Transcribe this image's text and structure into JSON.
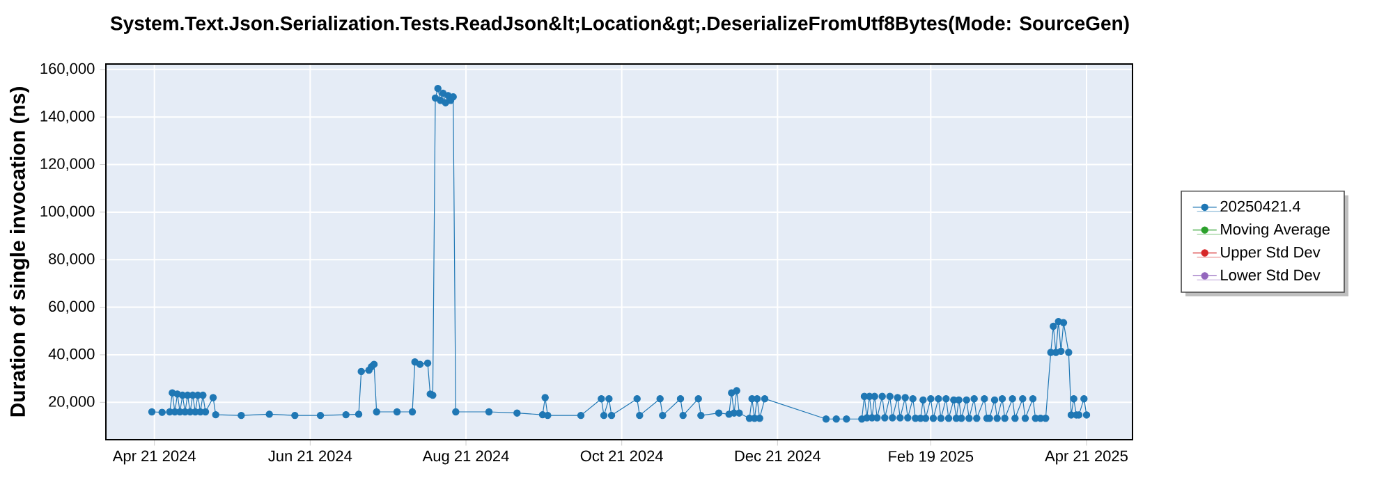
{
  "chart_data": {
    "type": "line",
    "title": "System.Text.Json.Serialization.Tests.ReadJson&lt;Location&gt;.DeserializeFromUtf8Bytes(Mode: SourceGen)",
    "ylabel": "Duration of single invocation (ns)",
    "xlim": [
      "2024-04-02",
      "2025-05-09"
    ],
    "ylim": [
      4300,
      162300
    ],
    "xticks": [
      {
        "value": "2024-04-21",
        "label": "Apr 21 2024"
      },
      {
        "value": "2024-06-21",
        "label": "Jun 21 2024"
      },
      {
        "value": "2024-08-21",
        "label": "Aug 21 2024"
      },
      {
        "value": "2024-10-21",
        "label": "Oct 21 2024"
      },
      {
        "value": "2024-12-21",
        "label": "Dec 21 2024"
      },
      {
        "value": "2025-02-19",
        "label": "Feb 19 2025"
      },
      {
        "value": "2025-04-21",
        "label": "Apr 21 2025"
      }
    ],
    "yticks": [
      {
        "value": 20000,
        "label": "20,000"
      },
      {
        "value": 40000,
        "label": "40,000"
      },
      {
        "value": 60000,
        "label": "60,000"
      },
      {
        "value": 80000,
        "label": "80,000"
      },
      {
        "value": 100000,
        "label": "100,000"
      },
      {
        "value": 120000,
        "label": "120,000"
      },
      {
        "value": 140000,
        "label": "140,000"
      },
      {
        "value": 160000,
        "label": "160,000"
      }
    ],
    "grid": true,
    "legend": "right",
    "marker": "circle",
    "series": [
      {
        "name": "20250421.4",
        "color": "#1f77b4",
        "x": [
          "2024-04-20",
          "2024-04-24",
          "2024-04-27",
          "2024-04-28",
          "2024-04-29",
          "2024-04-30",
          "2024-05-01",
          "2024-05-02",
          "2024-05-03",
          "2024-05-04",
          "2024-05-05",
          "2024-05-06",
          "2024-05-07",
          "2024-05-08",
          "2024-05-09",
          "2024-05-10",
          "2024-05-11",
          "2024-05-14",
          "2024-05-15",
          "2024-05-25",
          "2024-06-05",
          "2024-06-15",
          "2024-06-25",
          "2024-07-05",
          "2024-07-10",
          "2024-07-11",
          "2024-07-14",
          "2024-07-15",
          "2024-07-16",
          "2024-07-17",
          "2024-07-25",
          "2024-07-31",
          "2024-08-01",
          "2024-08-03",
          "2024-08-06",
          "2024-08-07",
          "2024-08-08",
          "2024-08-09",
          "2024-08-10",
          "2024-08-11",
          "2024-08-12",
          "2024-08-13",
          "2024-08-14",
          "2024-08-15",
          "2024-08-16",
          "2024-08-17",
          "2024-08-30",
          "2024-09-10",
          "2024-09-20",
          "2024-09-21",
          "2024-09-22",
          "2024-10-05",
          "2024-10-13",
          "2024-10-14",
          "2024-10-16",
          "2024-10-17",
          "2024-10-27",
          "2024-10-28",
          "2024-11-05",
          "2024-11-06",
          "2024-11-13",
          "2024-11-14",
          "2024-11-20",
          "2024-11-21",
          "2024-11-28",
          "2024-12-02",
          "2024-12-03",
          "2024-12-04",
          "2024-12-05",
          "2024-12-06",
          "2024-12-10",
          "2024-12-11",
          "2024-12-12",
          "2024-12-13",
          "2024-12-14",
          "2024-12-16",
          "2025-01-09",
          "2025-01-13",
          "2025-01-17",
          "2025-01-23",
          "2025-01-24",
          "2025-01-25",
          "2025-01-26",
          "2025-01-27",
          "2025-01-28",
          "2025-01-29",
          "2025-01-31",
          "2025-02-01",
          "2025-02-03",
          "2025-02-04",
          "2025-02-06",
          "2025-02-07",
          "2025-02-09",
          "2025-02-10",
          "2025-02-12",
          "2025-02-13",
          "2025-02-15",
          "2025-02-16",
          "2025-02-17",
          "2025-02-19",
          "2025-02-20",
          "2025-02-22",
          "2025-02-23",
          "2025-02-25",
          "2025-02-26",
          "2025-02-28",
          "2025-03-01",
          "2025-03-02",
          "2025-03-03",
          "2025-03-05",
          "2025-03-06",
          "2025-03-08",
          "2025-03-09",
          "2025-03-12",
          "2025-03-13",
          "2025-03-14",
          "2025-03-16",
          "2025-03-17",
          "2025-03-19",
          "2025-03-20",
          "2025-03-23",
          "2025-03-24",
          "2025-03-27",
          "2025-03-28",
          "2025-03-31",
          "2025-04-01",
          "2025-04-03",
          "2025-04-05",
          "2025-04-07",
          "2025-04-08",
          "2025-04-09",
          "2025-04-10",
          "2025-04-11",
          "2025-04-12",
          "2025-04-14",
          "2025-04-15",
          "2025-04-16",
          "2025-04-17",
          "2025-04-18",
          "2025-04-20",
          "2025-04-21"
        ],
        "values": [
          16000,
          15800,
          16000,
          24000,
          16000,
          23500,
          16000,
          23000,
          16000,
          23000,
          16000,
          23000,
          16000,
          23000,
          16000,
          23000,
          16000,
          22000,
          14800,
          14500,
          15000,
          14500,
          14500,
          14800,
          15000,
          33000,
          33500,
          35000,
          36000,
          16000,
          16000,
          16000,
          37000,
          36000,
          36500,
          23500,
          23000,
          148000,
          152000,
          147000,
          150000,
          146000,
          149000,
          147000,
          148500,
          16000,
          16000,
          15500,
          14800,
          22000,
          14500,
          14500,
          21500,
          14500,
          21500,
          14500,
          21500,
          14500,
          21500,
          14500,
          21500,
          14500,
          21500,
          14500,
          15500,
          15000,
          24000,
          15500,
          24900,
          15500,
          13300,
          21500,
          13300,
          21500,
          13300,
          21500,
          13000,
          13000,
          13000,
          13000,
          22500,
          13500,
          22500,
          13500,
          22500,
          13500,
          22500,
          13500,
          22500,
          13500,
          22000,
          13500,
          22000,
          13500,
          21500,
          13300,
          13300,
          21000,
          13300,
          21500,
          13300,
          21500,
          13300,
          21500,
          13300,
          21000,
          13300,
          21000,
          13300,
          21000,
          13300,
          21500,
          13300,
          21500,
          13300,
          13300,
          21000,
          13300,
          21500,
          13300,
          21500,
          13300,
          21500,
          13300,
          21500,
          13300,
          13300,
          13300,
          41000,
          52000,
          41000,
          54000,
          41500,
          53500,
          41000,
          14700,
          21500,
          14700,
          14700,
          21500,
          14700
        ]
      },
      {
        "name": "Moving Average",
        "color": "#2ca02c"
      },
      {
        "name": "Upper Std Dev",
        "color": "#d62728"
      },
      {
        "name": "Lower Std Dev",
        "color": "#9467bd"
      }
    ]
  }
}
